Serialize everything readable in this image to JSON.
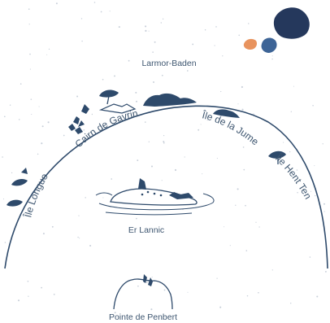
{
  "places": {
    "larmor_baden": "Larmor-Baden",
    "cairn_de_gavrinis": "Cairn de Gavrinis",
    "ile_de_la_jument": "Île de la Jument",
    "ile_longue": "Île Longue",
    "ile_hent_tenn": "Île Hent Tenn",
    "er_lannic": "Er Lannic",
    "pointe_de_penbert": "Pointe de Penbert"
  },
  "colors": {
    "ink": "#2e4a6b",
    "navy": "#25385c",
    "blue": "#3d6496",
    "orange": "#e8935e",
    "text": "#3e5670",
    "dots": "#c9d0da"
  },
  "icons": [
    "large-boulder-icon",
    "orange-pebble-icon",
    "blue-pebble-icon",
    "standing-stones-icon",
    "tree-icon"
  ]
}
